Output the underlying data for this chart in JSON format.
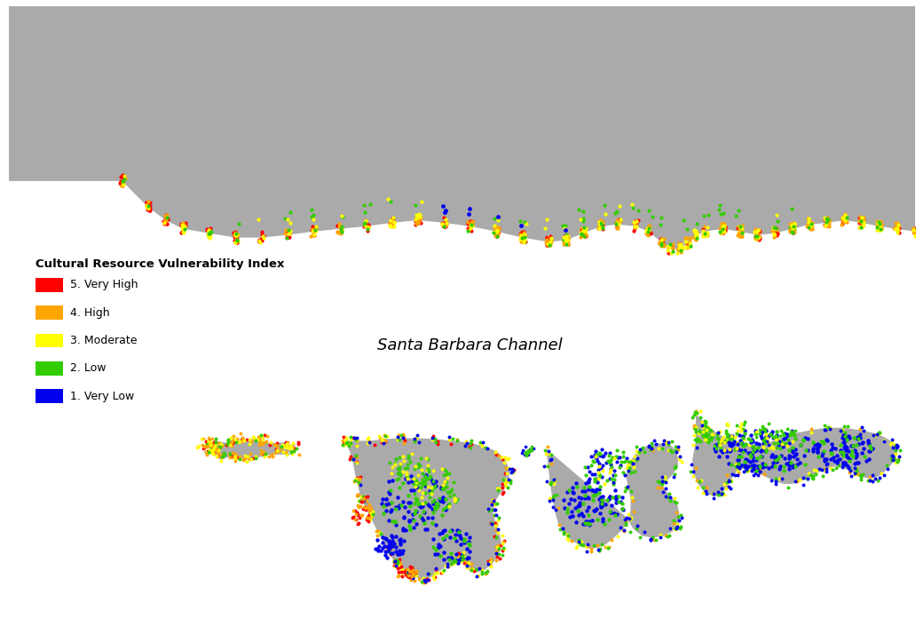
{
  "title": "Cultural Resource Vulnerability Index",
  "channel_label": "Santa Barbara Channel",
  "legend_items": [
    {
      "label": "5. Very High",
      "color": "#FF0000"
    },
    {
      "label": "4. High",
      "color": "#FFA500"
    },
    {
      "label": "3. Moderate",
      "color": "#FFFF00"
    },
    {
      "label": "2. Low",
      "color": "#33CC00"
    },
    {
      "label": "1. Very Low",
      "color": "#0000EE"
    }
  ],
  "land_color": "#AAAAAA",
  "water_color": "#FFFFFF",
  "background_color": "#FFFFFF",
  "border_color": "#000000",
  "figsize": [
    10.41,
    7.14
  ],
  "dpi": 100,
  "xlim": [
    0,
    1041
  ],
  "ylim": [
    0,
    714
  ]
}
